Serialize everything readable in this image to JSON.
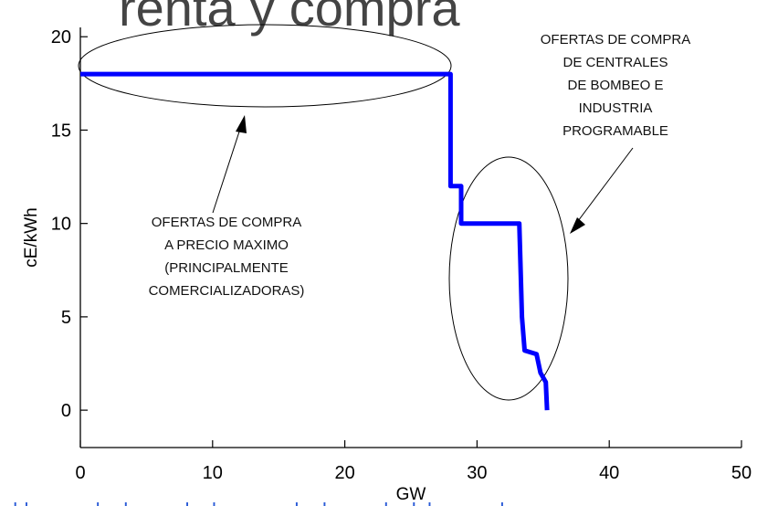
{
  "page": {
    "top_title_partial": "renta y compra",
    "bottom_text_partial": "los bloques de demanda, la curva de demanda del mercado se"
  },
  "colors": {
    "series": "#0000ff",
    "axis": "#000000",
    "annotation_lines": "#000000"
  },
  "annotations": {
    "left": {
      "lines": [
        "OFERTAS DE COMPRA",
        "A PRECIO MAXIMO",
        "(PRINCIPALMENTE",
        "COMERCIALIZADORAS)"
      ]
    },
    "right": {
      "lines": [
        "OFERTAS DE COMPRA",
        "DE CENTRALES",
        "DE BOMBEO E",
        "INDUSTRIA",
        "PROGRAMABLE"
      ]
    }
  },
  "chart_data": {
    "type": "line",
    "title": "",
    "xlabel": "GW",
    "ylabel": "cE/kWh",
    "xlim": [
      0,
      50
    ],
    "ylim": [
      -2,
      20.5
    ],
    "xticks": [
      0,
      10,
      20,
      30,
      40,
      50
    ],
    "yticks": [
      0,
      5,
      10,
      15,
      20
    ],
    "grid": false,
    "series": [
      {
        "x": [
          0,
          28,
          28,
          28.8,
          28.8,
          33.2,
          33.4,
          33.6,
          34.5,
          34.8,
          35.2,
          35.3
        ],
        "y": [
          18,
          18,
          12,
          12,
          10,
          10,
          5,
          3.2,
          3,
          2,
          1.5,
          0
        ]
      }
    ]
  }
}
